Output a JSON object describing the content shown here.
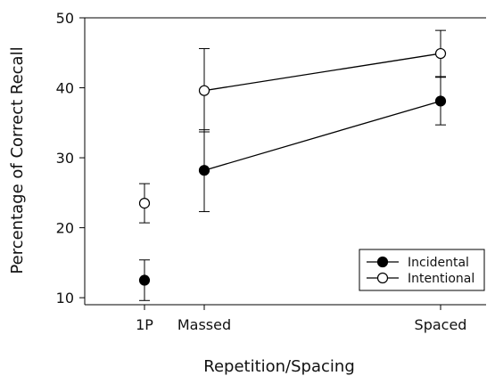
{
  "chart_data": {
    "type": "scatter",
    "xlabel": "Repetition/Spacing",
    "ylabel": "Percentage of Correct Recall",
    "ylim": [
      9,
      50
    ],
    "yticks": [
      10,
      20,
      30,
      40,
      50
    ],
    "categories": [
      "1P",
      "Massed",
      "Spaced"
    ],
    "grid": false,
    "legend_position": "bottom-right",
    "series": [
      {
        "name": "Incidental",
        "marker": "filled-circle",
        "color": "#000000",
        "points": [
          {
            "x": "1P",
            "y": 12.5,
            "err_low": 9.6,
            "err_high": 15.4,
            "connected": false
          },
          {
            "x": "Massed",
            "y": 28.2,
            "err_low": 22.3,
            "err_high": 34.0,
            "connected": true
          },
          {
            "x": "Spaced",
            "y": 38.1,
            "err_low": 34.7,
            "err_high": 41.5,
            "connected": true
          }
        ]
      },
      {
        "name": "Intentional",
        "marker": "open-circle",
        "color": "#000000",
        "points": [
          {
            "x": "1P",
            "y": 23.5,
            "err_low": 20.7,
            "err_high": 26.3,
            "connected": false
          },
          {
            "x": "Massed",
            "y": 39.6,
            "err_low": 33.7,
            "err_high": 45.6,
            "connected": true
          },
          {
            "x": "Spaced",
            "y": 44.9,
            "err_low": 41.6,
            "err_high": 48.2,
            "connected": true
          }
        ]
      }
    ]
  }
}
